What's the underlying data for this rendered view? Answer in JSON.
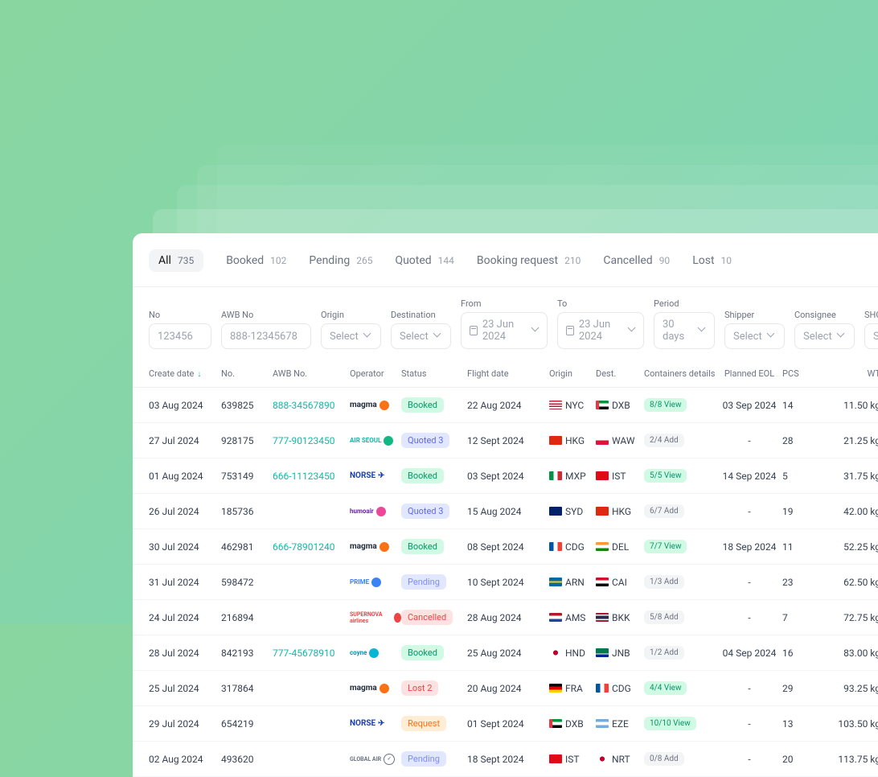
{
  "tabs": [
    {
      "label": "All",
      "count": "735",
      "active": true
    },
    {
      "label": "Booked",
      "count": "102"
    },
    {
      "label": "Pending",
      "count": "265"
    },
    {
      "label": "Quoted",
      "count": "144"
    },
    {
      "label": "Booking request",
      "count": "210"
    },
    {
      "label": "Cancelled",
      "count": "90"
    },
    {
      "label": "Lost",
      "count": "10"
    }
  ],
  "filters": {
    "no_label": "No",
    "no_placeholder": "123456",
    "awb_label": "AWB No",
    "awb_placeholder": "888-12345678",
    "origin_label": "Origin",
    "origin_value": "Select",
    "dest_label": "Destination",
    "dest_value": "Select",
    "from_label": "From",
    "from_value": "23 Jun 2024",
    "to_label": "To",
    "to_value": "23 Jun 2024",
    "period_label": "Period",
    "period_value": "30 days",
    "shipper_label": "Shipper",
    "shipper_value": "Select",
    "consignee_label": "Consignee",
    "consignee_value": "Select",
    "shc_label": "SHC cod",
    "shc_value": "Select"
  },
  "columns": {
    "create": "Create date",
    "no": "No.",
    "awb": "AWB No.",
    "operator": "Operator",
    "status": "Status",
    "flight": "Flight date",
    "origin": "Origin",
    "dest": "Dest.",
    "containers": "Containers details",
    "eol": "Planned EOL",
    "pcs": "PCS",
    "wt": "WT"
  },
  "rows": [
    {
      "create": "03 Aug 2024",
      "no": "639825",
      "awb": "888-34567890",
      "awb_link": true,
      "op": {
        "name": "magma",
        "color": "#f97316",
        "text": "#1f2937"
      },
      "status": "Booked",
      "status_class": "booked",
      "flight": "22 Aug 2024",
      "origin": {
        "code": "NYC",
        "flag": "us"
      },
      "dest": {
        "code": "DXB",
        "flag": "ae"
      },
      "cont": "8/8 View",
      "cont_class": "view",
      "eol": "03 Sep 2024",
      "pcs": "14",
      "wt": "11.50 kg"
    },
    {
      "create": "27 Jul 2024",
      "no": "928175",
      "awb": "777-90123450",
      "awb_link": true,
      "op": {
        "name": "AIR SEOUL",
        "color": "#10b981",
        "text": "#14b8a6",
        "small": true
      },
      "status": "Quoted 3",
      "status_class": "quoted",
      "flight": "12 Sept 2024",
      "origin": {
        "code": "HKG",
        "flag": "hk"
      },
      "dest": {
        "code": "WAW",
        "flag": "pl"
      },
      "cont": "2/4 Add",
      "cont_class": "add",
      "eol": "-",
      "pcs": "28",
      "wt": "21.25 kg"
    },
    {
      "create": "01 Aug 2024",
      "no": "753149",
      "awb": "666-11123450",
      "awb_link": true,
      "op": {
        "name": "NORSE",
        "color": "#3b82f6",
        "text": "#1e40af",
        "arrow": true
      },
      "status": "Booked",
      "status_class": "booked",
      "flight": "03 Sept 2024",
      "origin": {
        "code": "MXP",
        "flag": "it"
      },
      "dest": {
        "code": "IST",
        "flag": "tr"
      },
      "cont": "5/5 View",
      "cont_class": "view",
      "eol": "14 Sep 2024",
      "pcs": "5",
      "wt": "31.75 kg"
    },
    {
      "create": "26 Jul 2024",
      "no": "185736",
      "awb": "",
      "awb_link": false,
      "op": {
        "name": "humoair",
        "color": "#ec4899",
        "text": "#6b21a8",
        "small": true
      },
      "status": "Quoted 3",
      "status_class": "quoted",
      "flight": "15 Aug 2024",
      "origin": {
        "code": "SYD",
        "flag": "au"
      },
      "dest": {
        "code": "HKG",
        "flag": "hk"
      },
      "cont": "6/7 Add",
      "cont_class": "add",
      "eol": "-",
      "pcs": "19",
      "wt": "42.00 kg"
    },
    {
      "create": "30 Jul 2024",
      "no": "462981",
      "awb": "666-78901240",
      "awb_link": true,
      "op": {
        "name": "magma",
        "color": "#f97316",
        "text": "#1f2937"
      },
      "status": "Booked",
      "status_class": "booked",
      "flight": "08 Sept 2024",
      "origin": {
        "code": "CDG",
        "flag": "fr"
      },
      "dest": {
        "code": "DEL",
        "flag": "in"
      },
      "cont": "7/7 View",
      "cont_class": "view",
      "eol": "18 Sep 2024",
      "pcs": "11",
      "wt": "52.25 kg"
    },
    {
      "create": "31 Jul 2024",
      "no": "598472",
      "awb": "",
      "awb_link": false,
      "op": {
        "name": "PRIME",
        "color": "#3b82f6",
        "text": "#3b82f6",
        "small": true
      },
      "status": "Pending",
      "status_class": "pending",
      "flight": "10 Sept 2024",
      "origin": {
        "code": "ARN",
        "flag": "se"
      },
      "dest": {
        "code": "CAI",
        "flag": "eg"
      },
      "cont": "1/3 Add",
      "cont_class": "add",
      "eol": "-",
      "pcs": "23",
      "wt": "62.50 kg"
    },
    {
      "create": "24 Jul 2024",
      "no": "216894",
      "awb": "",
      "awb_link": false,
      "op": {
        "name": "SUPERNOVA airlines",
        "color": "#ef4444",
        "text": "#ef4444",
        "tiny": true
      },
      "status": "Cancelled",
      "status_class": "cancelled",
      "flight": "28 Aug 2024",
      "origin": {
        "code": "AMS",
        "flag": "nl"
      },
      "dest": {
        "code": "BKK",
        "flag": "th"
      },
      "cont": "5/8 Add",
      "cont_class": "add",
      "eol": "-",
      "pcs": "7",
      "wt": "72.75 kg"
    },
    {
      "create": "28 Jul 2024",
      "no": "842193",
      "awb": "777-45678910",
      "awb_link": true,
      "op": {
        "name": "coyne",
        "color": "#06b6d4",
        "text": "#0891b2",
        "small": true
      },
      "status": "Booked",
      "status_class": "booked",
      "flight": "25 Aug 2024",
      "origin": {
        "code": "HND",
        "flag": "jp"
      },
      "dest": {
        "code": "JNB",
        "flag": "za"
      },
      "cont": "1/2 Add",
      "cont_class": "add",
      "eol": "04 Sep 2024",
      "pcs": "16",
      "wt": "83.00 kg"
    },
    {
      "create": "25 Jul 2024",
      "no": "317864",
      "awb": "",
      "awb_link": false,
      "op": {
        "name": "magma",
        "color": "#f97316",
        "text": "#1f2937"
      },
      "status": "Lost 2",
      "status_class": "lost",
      "flight": "20 Aug 2024",
      "origin": {
        "code": "FRA",
        "flag": "de"
      },
      "dest": {
        "code": "CDG",
        "flag": "fr"
      },
      "cont": "4/4 View",
      "cont_class": "view",
      "eol": "-",
      "pcs": "29",
      "wt": "93.25 kg"
    },
    {
      "create": "29 Jul 2024",
      "no": "654219",
      "awb": "",
      "awb_link": false,
      "op": {
        "name": "NORSE",
        "color": "#3b82f6",
        "text": "#1e40af",
        "arrow": true
      },
      "status": "Request",
      "status_class": "request",
      "flight": "01 Sept 2024",
      "origin": {
        "code": "DXB",
        "flag": "ae"
      },
      "dest": {
        "code": "EZE",
        "flag": "ar"
      },
      "cont": "10/10 View",
      "cont_class": "view",
      "eol": "-",
      "pcs": "13",
      "wt": "103.50 kg"
    },
    {
      "create": "02 Aug 2024",
      "no": "493620",
      "awb": "",
      "awb_link": false,
      "op": {
        "name": "GLOBAL AIR",
        "color": "#6b7280",
        "text": "#6b7280",
        "tiny": true,
        "circle": true
      },
      "status": "Pending",
      "status_class": "pending",
      "flight": "18 Sept 2024",
      "origin": {
        "code": "IST",
        "flag": "tr"
      },
      "dest": {
        "code": "NRT",
        "flag": "jp"
      },
      "cont": "0/8 Add",
      "cont_class": "add",
      "eol": "-",
      "pcs": "20",
      "wt": "113.75 kg"
    }
  ],
  "flags": {
    "us": "linear-gradient(#b22234 0 15%,#fff 15% 30%,#b22234 30% 45%,#fff 45% 60%,#b22234 60% 75%,#fff 75% 90%,#b22234 90%)",
    "ae": "linear-gradient(90deg,#ef3340 0 25%,transparent 25%),linear-gradient(#009639 0 33%,#fff 33% 66%,#000 66%)",
    "hk": "#de2910",
    "pl": "linear-gradient(#fff 0 50%,#dc143c 50%)",
    "it": "linear-gradient(90deg,#009246 0 33%,#fff 33% 66%,#ce2b37 66%)",
    "tr": "#e30a17",
    "au": "#012169",
    "fr": "linear-gradient(90deg,#0055a4 0 33%,#fff 33% 66%,#ef4135 66%)",
    "in": "linear-gradient(#ff9933 0 33%,#fff 33% 66%,#138808 66%)",
    "se": "linear-gradient(#006aa7 0 40%,#fecc00 40% 60%,#006aa7 60%)",
    "eg": "linear-gradient(#ce1126 0 33%,#fff 33% 66%,#000 66%)",
    "nl": "linear-gradient(#ae1c28 0 33%,#fff 33% 66%,#21468b 66%)",
    "th": "linear-gradient(#a51931 0 17%,#f4f5f8 17% 33%,#2d2a4a 33% 67%,#f4f5f8 67% 83%,#a51931 83%)",
    "jp": "radial-gradient(circle,#bc002d 0 30%,#fff 32%)",
    "za": "linear-gradient(#007a4d 40% 60%,transparent 0),linear-gradient(#de3831 0 33%,#fff 33% 66%,#002395 66%)",
    "de": "linear-gradient(#000 0 33%,#dd0000 33% 66%,#ffce00 66%)",
    "ar": "linear-gradient(#74acdf 0 33%,#fff 33% 66%,#74acdf 66%)"
  }
}
